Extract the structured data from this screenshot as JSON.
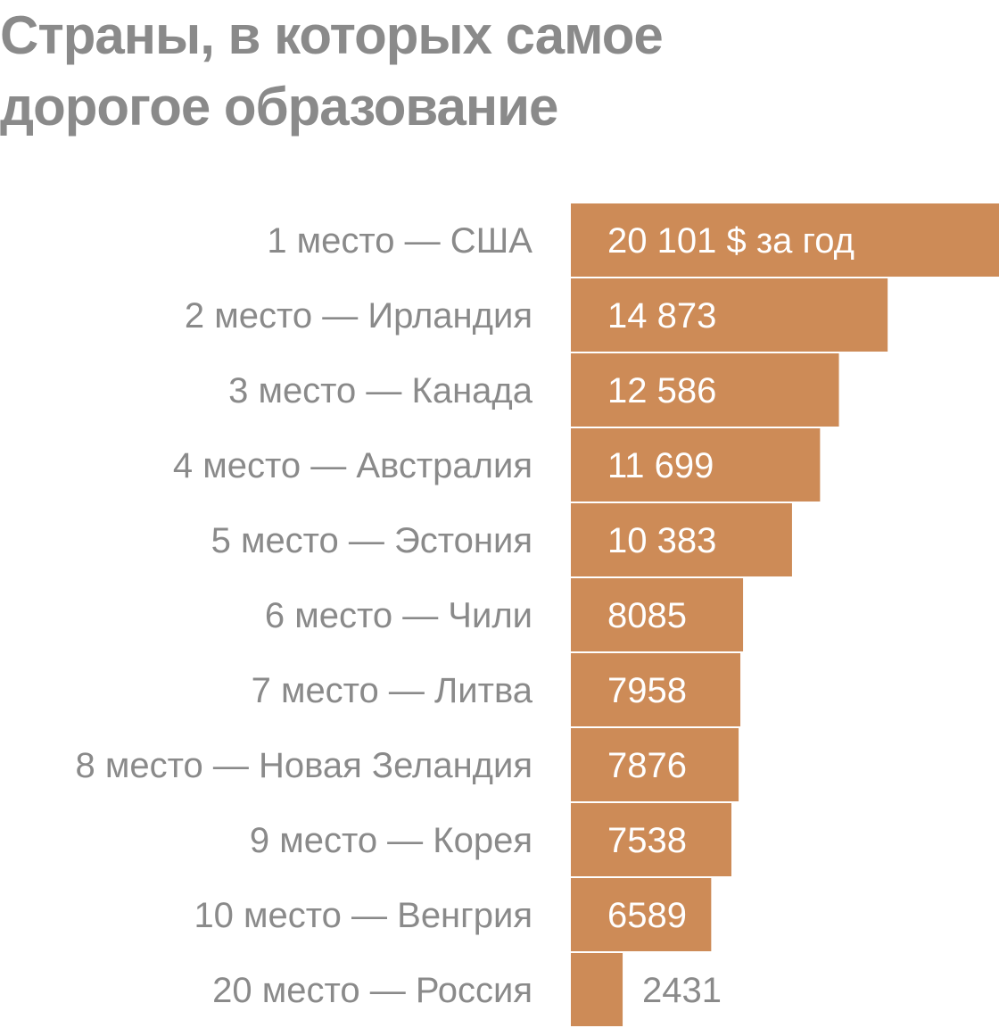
{
  "chart_data": {
    "type": "bar",
    "orientation": "horizontal",
    "title": "Страны, в которых самое дорогое образование",
    "title_lines": [
      "Страны, в которых самое",
      "дорогое образование"
    ],
    "bar_color": "#cd8b57",
    "text_color": "#8a8a8a",
    "categories": [
      "1 место — США",
      "2 место — Ирландия",
      "3 место — Канада",
      "4 место — Австралия",
      "5 место — Эстония",
      "6 место — Чили",
      "7 место — Литва",
      "8 место — Новая Зеландия",
      "9 место — Корея",
      "10 место — Венгрия",
      "20 место — Россия"
    ],
    "values": [
      20101,
      14873,
      12586,
      11699,
      10383,
      8085,
      7958,
      7876,
      7538,
      6589,
      2431
    ],
    "value_labels": [
      "20 101 $ за год",
      "14 873",
      "12 586",
      "11 699",
      "10 383",
      "8085",
      "7958",
      "7876",
      "7538",
      "6589",
      "2431"
    ],
    "unit": "$ за год",
    "xlabel": "",
    "ylabel": "",
    "xlim": [
      0,
      20101
    ],
    "grid": false,
    "legend": "none"
  }
}
